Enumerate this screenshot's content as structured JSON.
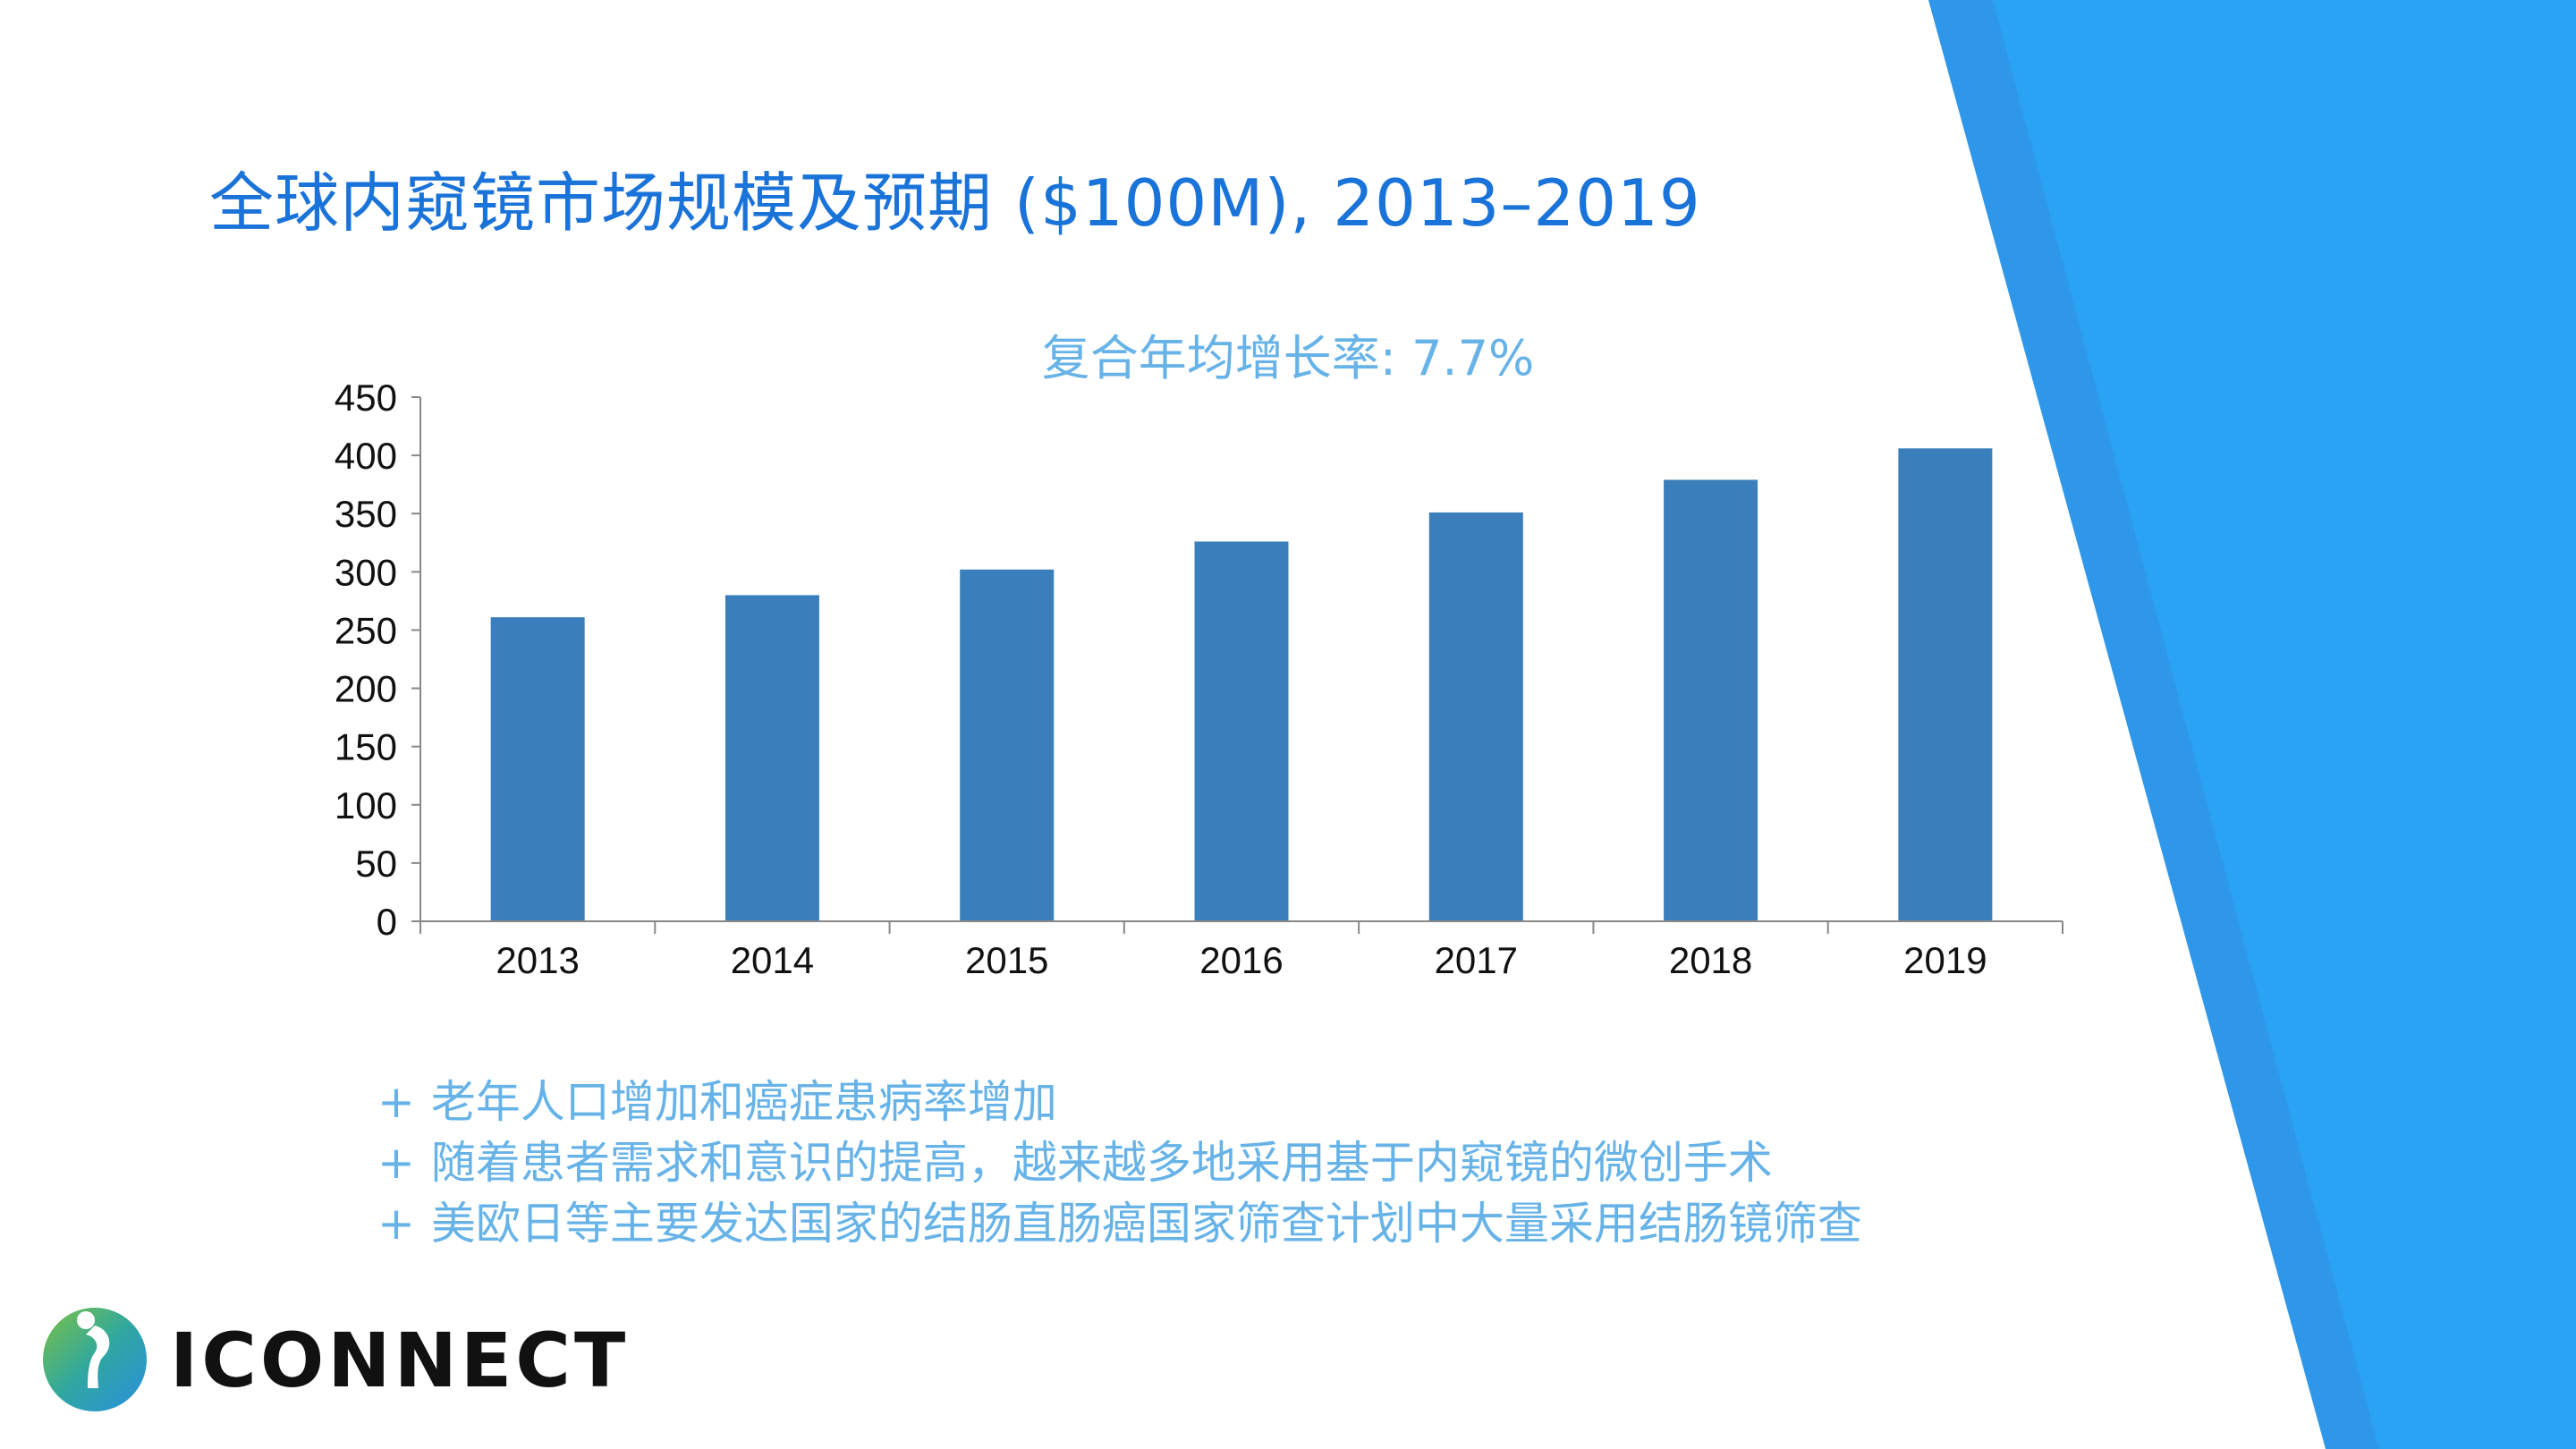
{
  "title": "全球内窥镜市场规模及预期 ($100M), 2013–2019",
  "subtitle": "复合年均增长率: 7.7%",
  "bullets": [
    "老年人口增加和癌症患病率增加",
    "随着患者需求和意识的提高，越来越多地采用基于内窥镜的微创手术",
    "美欧日等主要发达国家的结肠直肠癌国家筛查计划中大量采用结肠镜筛查"
  ],
  "bullet_marker": "+",
  "logo": {
    "text": "ICONNECT",
    "icon": "iconnect-logo-icon"
  },
  "colors": {
    "title": "#1a73d9",
    "subtitle": "#67b3e8",
    "bar": "#3a7fbc",
    "decor_blue_dark": "#2e97ea",
    "decor_blue_light": "#2aa3f5"
  },
  "chart_data": {
    "type": "bar",
    "categories": [
      "2013",
      "2014",
      "2015",
      "2016",
      "2017",
      "2018",
      "2019"
    ],
    "values": [
      261,
      280,
      302,
      326,
      351,
      379,
      406
    ],
    "ylim": [
      0,
      450
    ],
    "yticks": [
      0,
      50,
      100,
      150,
      200,
      250,
      300,
      350,
      400,
      450
    ],
    "grid": false,
    "legend": "none",
    "title": "",
    "xlabel": "",
    "ylabel": ""
  }
}
